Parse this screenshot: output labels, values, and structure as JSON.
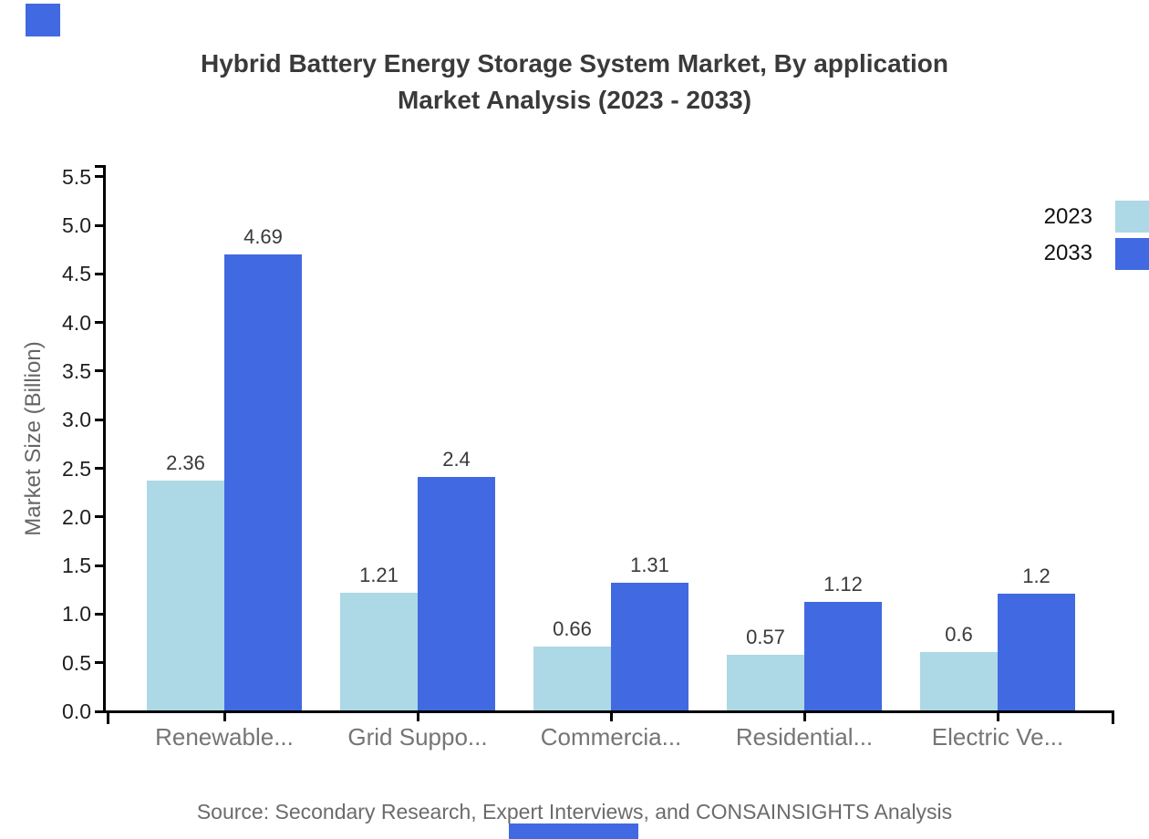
{
  "title": {
    "line1": "Hybrid Battery Energy Storage System Market, By application",
    "line2": "Market Analysis (2023 - 2033)"
  },
  "chart_data": {
    "type": "bar",
    "title": "Hybrid Battery Energy Storage System Market, By application Market Analysis (2023 - 2033)",
    "categories": [
      "Renewable...",
      "Grid Suppo...",
      "Commercia...",
      "Residential...",
      "Electric Ve..."
    ],
    "series": [
      {
        "name": "2023",
        "color": "#ADD8E6",
        "values": [
          2.36,
          1.21,
          0.66,
          0.57,
          0.6
        ]
      },
      {
        "name": "2033",
        "color": "#4169E1",
        "values": [
          4.69,
          2.4,
          1.31,
          1.12,
          1.2
        ]
      }
    ],
    "xlabel": "",
    "ylabel": "Market Size (Billion)",
    "ylim": [
      0,
      5.5
    ],
    "ytick_step": 0.5,
    "ytick_labels": [
      "0.0",
      "0.5",
      "1.0",
      "1.5",
      "2.0",
      "2.5",
      "3.0",
      "3.5",
      "4.0",
      "4.5",
      "5.0",
      "5.5"
    ],
    "grid": false,
    "legend_position": "outside-right-top"
  },
  "legend": {
    "entries": [
      "2023",
      "2033"
    ]
  },
  "footer": {
    "source": "Source: Secondary Research, Expert Interviews, and CONSAINSIGHTS Analysis"
  },
  "branding": {
    "accent_color": "#4169E1"
  }
}
